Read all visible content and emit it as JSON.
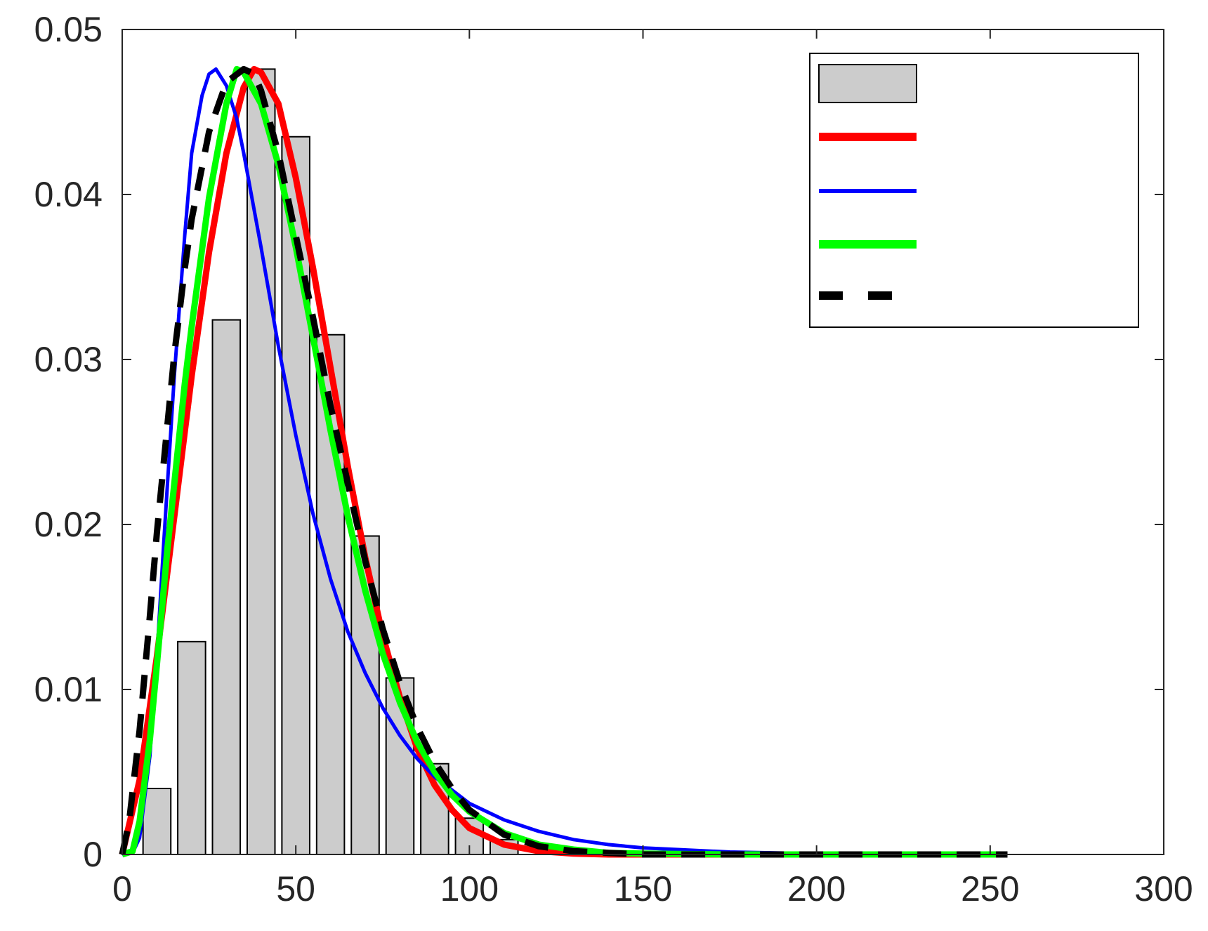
{
  "chart_data": {
    "type": "bar",
    "xlim": [
      0,
      300
    ],
    "ylim": [
      0,
      0.05
    ],
    "xticks": [
      "0",
      "50",
      "100",
      "150",
      "200",
      "250",
      "300"
    ],
    "yticks": [
      "0",
      "0.01",
      "0.02",
      "0.03",
      "0.04",
      "0.05"
    ],
    "grid": false,
    "legend_position": "top-right",
    "histogram": {
      "color": "#cccccc",
      "bin_width": 10,
      "bin_centers": [
        10,
        20,
        30,
        40,
        50,
        60,
        70,
        80,
        90,
        100,
        110
      ],
      "values": [
        0.004,
        0.0129,
        0.0324,
        0.0476,
        0.0435,
        0.0315,
        0.0193,
        0.0107,
        0.0055,
        0.0022,
        0.0009
      ]
    },
    "series": [
      {
        "color": "#ff0000",
        "style": "solid",
        "width": 9,
        "x": [
          0,
          5,
          10,
          15,
          20,
          25,
          30,
          35,
          38,
          40,
          45,
          50,
          55,
          60,
          65,
          70,
          75,
          80,
          85,
          90,
          95,
          100,
          110,
          120,
          130,
          140,
          150,
          175,
          200,
          255
        ],
        "y": [
          0,
          0.0045,
          0.012,
          0.0205,
          0.029,
          0.0365,
          0.0425,
          0.0465,
          0.0476,
          0.0474,
          0.0455,
          0.041,
          0.0355,
          0.0295,
          0.0235,
          0.018,
          0.0133,
          0.0095,
          0.0064,
          0.0042,
          0.0027,
          0.0016,
          0.0006,
          0.0002,
          5e-05,
          0,
          0,
          0,
          0,
          0
        ]
      },
      {
        "color": "#0000ff",
        "style": "solid",
        "width": 5,
        "x": [
          0,
          3,
          5,
          8,
          10,
          12,
          15,
          18,
          20,
          23,
          25,
          27,
          30,
          33,
          35,
          40,
          45,
          50,
          55,
          60,
          65,
          70,
          75,
          80,
          85,
          90,
          95,
          100,
          110,
          120,
          130,
          140,
          150,
          175,
          200,
          255
        ],
        "y": [
          0,
          0.0001,
          0.001,
          0.006,
          0.012,
          0.019,
          0.029,
          0.0375,
          0.0425,
          0.046,
          0.0473,
          0.0476,
          0.0466,
          0.0446,
          0.0425,
          0.0368,
          0.0308,
          0.0254,
          0.0206,
          0.0167,
          0.0135,
          0.011,
          0.0089,
          0.0072,
          0.0058,
          0.0047,
          0.0039,
          0.0031,
          0.0021,
          0.0014,
          0.0009,
          0.0006,
          0.0004,
          0.00015,
          5e-05,
          0
        ]
      },
      {
        "color": "#00ff00",
        "style": "solid",
        "width": 9,
        "x": [
          0,
          3,
          5,
          8,
          10,
          13,
          15,
          18,
          20,
          25,
          30,
          33,
          35,
          40,
          45,
          50,
          55,
          60,
          65,
          70,
          75,
          80,
          85,
          90,
          95,
          100,
          110,
          120,
          130,
          140,
          150,
          175,
          200,
          255
        ],
        "y": [
          0,
          0.0002,
          0.002,
          0.007,
          0.0115,
          0.0185,
          0.0225,
          0.0285,
          0.032,
          0.0398,
          0.0455,
          0.0476,
          0.0474,
          0.0455,
          0.0418,
          0.0368,
          0.0313,
          0.0257,
          0.0205,
          0.016,
          0.0122,
          0.0092,
          0.0068,
          0.005,
          0.0036,
          0.0026,
          0.0013,
          0.0006,
          0.0003,
          0.0001,
          5e-05,
          0,
          0,
          0
        ]
      },
      {
        "color": "#000000",
        "style": "dashed",
        "width": 9,
        "x": [
          0,
          2,
          5,
          8,
          10,
          13,
          15,
          18,
          20,
          25,
          30,
          35,
          38,
          40,
          45,
          50,
          55,
          60,
          65,
          70,
          75,
          80,
          85,
          90,
          95,
          100,
          110,
          120,
          130,
          140,
          150,
          175,
          200,
          255
        ],
        "y": [
          0,
          0.002,
          0.0075,
          0.0145,
          0.0195,
          0.026,
          0.0303,
          0.0355,
          0.0385,
          0.0438,
          0.0468,
          0.0476,
          0.0473,
          0.0463,
          0.0425,
          0.0375,
          0.0325,
          0.0272,
          0.0225,
          0.0178,
          0.0137,
          0.0104,
          0.0077,
          0.0056,
          0.004,
          0.0027,
          0.0012,
          0.0005,
          0.0002,
          0.0001,
          0,
          0,
          0,
          0
        ]
      }
    ],
    "legend_entries": [
      {
        "kind": "patch",
        "color": "#cccccc"
      },
      {
        "kind": "line",
        "color": "#ff0000",
        "style": "solid"
      },
      {
        "kind": "line",
        "color": "#0000ff",
        "style": "solid"
      },
      {
        "kind": "line",
        "color": "#00ff00",
        "style": "solid"
      },
      {
        "kind": "line",
        "color": "#000000",
        "style": "dashed"
      }
    ]
  }
}
